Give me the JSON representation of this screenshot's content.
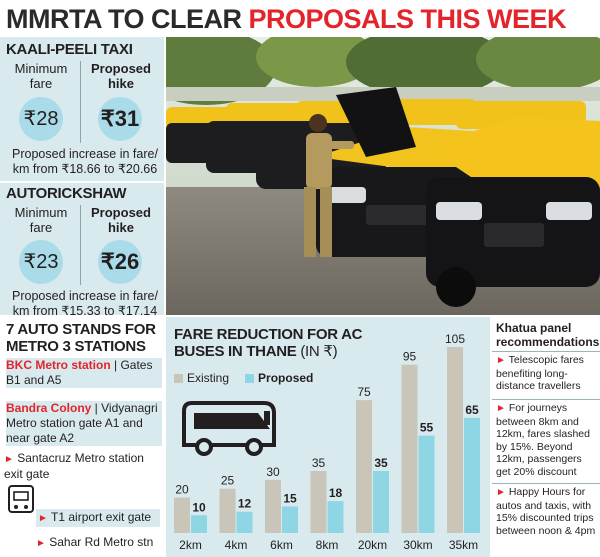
{
  "headline": {
    "part1": "MMRTA TO CLEAR ",
    "part2": "PROPOSALS THIS WEEK"
  },
  "taxi": {
    "title": "KAALI-PEELI TAXI",
    "min_label": "Minimum\nfare",
    "prop_label": "Proposed\nhike",
    "min_value": "₹28",
    "prop_value": "₹31",
    "note": "Proposed increase in fare/ km from ₹18.66 to ₹20.66"
  },
  "auto": {
    "title": "AUTORICKSHAW",
    "min_label": "Minimum\nfare",
    "prop_label": "Proposed\nhike",
    "min_value": "₹23",
    "prop_value": "₹26",
    "note": "Proposed increase in fare/ km from ₹15.33 to ₹17.14"
  },
  "stands": {
    "title": "7 AUTO STANDS FOR METRO 3 STATIONS",
    "bkc_name": "BKC Metro station",
    "bkc_rest": " | Gates B1 and A5",
    "bandra_name": "Bandra Colony",
    "bandra_rest": " | Vidyanagri Metro station gate A1 and near gate A2",
    "santacruz": "Santacruz Metro station exit gate",
    "t1": "T1 airport exit gate",
    "sahar": "Sahar Rd Metro stn"
  },
  "chart_data": {
    "type": "bar",
    "title": "FARE REDUCTION FOR AC BUSES IN THANE",
    "unit": "(IN ₹)",
    "categories": [
      "2km",
      "4km",
      "6km",
      "8km",
      "20km",
      "30km",
      "35km"
    ],
    "series": [
      {
        "name": "Existing",
        "values": [
          20,
          25,
          30,
          35,
          75,
          95,
          105
        ],
        "color": "#c9c5b8"
      },
      {
        "name": "Proposed",
        "values": [
          10,
          12,
          15,
          18,
          35,
          55,
          65
        ],
        "color": "#8fd6e4"
      }
    ],
    "ylim": [
      0,
      105
    ]
  },
  "panel": {
    "title": "Khatua panel recommendations",
    "items": [
      "Telescopic fares benefiting long-distance travellers",
      "For journeys between 8km and 12km, fares slashed by 15%. Beyond 12km, passengers get 20% discount",
      "Happy Hours for autos and taxis, with 15% discounted trips between noon & 4pm"
    ]
  }
}
